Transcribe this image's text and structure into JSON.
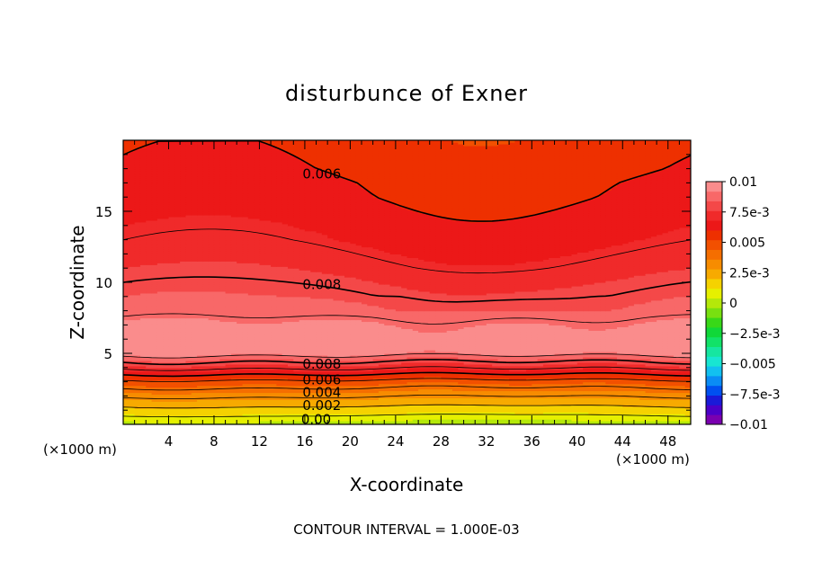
{
  "chart_data": {
    "type": "heatmap",
    "title": "disturbunce of Exner",
    "xlabel": "X-coordinate",
    "ylabel": "Z-coordinate",
    "x_unit_left": "(×1000 m)",
    "x_unit_right": "(×1000 m)",
    "footer": "CONTOUR INTERVAL = 1.000E-03",
    "xlim": [
      0,
      50
    ],
    "ylim": [
      0,
      20
    ],
    "x_ticks": [
      "4",
      "8",
      "12",
      "16",
      "20",
      "24",
      "28",
      "32",
      "36",
      "40",
      "44",
      "48"
    ],
    "y_ticks": [
      "5",
      "10",
      "15"
    ],
    "colorbar": {
      "range": [
        -0.01,
        0.01
      ],
      "labels": [
        "0.01",
        "7.5e-3",
        "0.005",
        "2.5e-3",
        "0",
        "−2.5e-3",
        "−0.005",
        "−7.5e-3",
        "−0.01"
      ],
      "colors": [
        "#7a00b0",
        "#4b00c8",
        "#1a1ad8",
        "#0050f0",
        "#0a8cf5",
        "#12c0f0",
        "#18e6d2",
        "#16e6a0",
        "#12e268",
        "#10d838",
        "#38d818",
        "#78e010",
        "#b4e80a",
        "#e6f000",
        "#f5d200",
        "#f7aa00",
        "#f78c00",
        "#f56e00",
        "#f25000",
        "#ee3000",
        "#ec1818",
        "#f02a2a",
        "#f44848",
        "#f86868",
        "#fa8c8c"
      ]
    },
    "profile": {
      "z": [
        0,
        1,
        2,
        3,
        4,
        4.5,
        5,
        5.5,
        6,
        6.5,
        7,
        7.5,
        8,
        9,
        10,
        11,
        12,
        13,
        14,
        15,
        16,
        17,
        18,
        19,
        20
      ],
      "value": [
        0.0,
        0.0016,
        0.0031,
        0.0047,
        0.0072,
        0.0082,
        0.0094,
        0.0098,
        0.0097,
        0.0095,
        0.0093,
        0.009,
        0.0086,
        0.0082,
        0.0078,
        0.0074,
        0.0071,
        0.0068,
        0.0066,
        0.0064,
        0.0062,
        0.0061,
        0.0059,
        0.0058,
        0.0057
      ]
    },
    "contour_labels": [
      {
        "text": "0.006",
        "x": 17.5,
        "z": 17.7
      },
      {
        "text": "0.008",
        "x": 17.5,
        "z": 9.9
      },
      {
        "text": "0.008",
        "x": 17.5,
        "z": 4.3
      },
      {
        "text": "0.006",
        "x": 17.5,
        "z": 3.2
      },
      {
        "text": "0.004",
        "x": 17.5,
        "z": 2.3
      },
      {
        "text": "0.002",
        "x": 17.5,
        "z": 1.4
      },
      {
        "text": "0.00",
        "x": 17.0,
        "z": 0.4
      }
    ]
  }
}
